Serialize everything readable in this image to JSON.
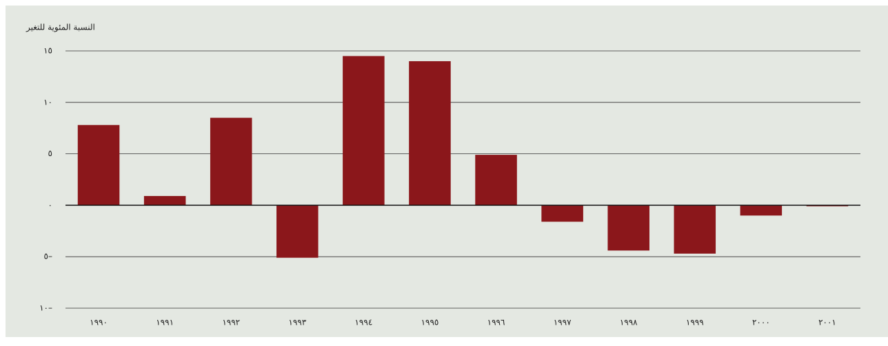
{
  "chart_data": {
    "type": "bar",
    "y_label": "النسبة المئوية للتغير",
    "categories": [
      "١٩٩٠",
      "١٩٩١",
      "١٩٩٢",
      "١٩٩٣",
      "١٩٩٤",
      "١٩٩٥",
      "١٩٩٦",
      "١٩٩٧",
      "١٩٩٨",
      "١٩٩٩",
      "٢٠٠٠",
      "٢٠٠١"
    ],
    "values": [
      7.8,
      0.9,
      8.5,
      -5.1,
      14.5,
      14.0,
      4.9,
      -1.6,
      -4.4,
      -4.7,
      -1.0,
      -0.1
    ],
    "color": "#8b171b",
    "ylim": [
      -10,
      15
    ],
    "yticks": [
      {
        "value": -10,
        "label": "١٠–"
      },
      {
        "value": -5,
        "label": "٥–"
      },
      {
        "value": 0,
        "label": "٠"
      },
      {
        "value": 5,
        "label": "٥"
      },
      {
        "value": 10,
        "label": "١٠"
      },
      {
        "value": 15,
        "label": "١٥"
      }
    ],
    "grid": true
  }
}
